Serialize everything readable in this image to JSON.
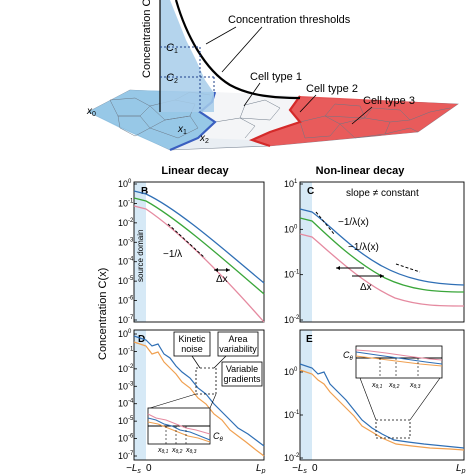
{
  "top": {
    "y_axis_label": "Concentration C(x)",
    "threshold_title": "Concentration thresholds",
    "c1": "C",
    "c1_sub": "1",
    "c2": "C",
    "c2_sub": "2",
    "x0": "x",
    "x0_sub": "0",
    "x1": "x",
    "x1_sub": "1",
    "x2": "x",
    "x2_sub": "2",
    "cell_type_1": "Cell type 1",
    "cell_type_2": "Cell type 2",
    "cell_type_3": "Cell type 3"
  },
  "headers": {
    "linear": "Linear decay",
    "nonlinear": "Non-linear decay"
  },
  "panels": {
    "B": {
      "letter": "B",
      "ticks": [
        "10",
        "10",
        "10",
        "10",
        "10",
        "10",
        "10",
        "10"
      ],
      "exps": [
        "0",
        "-1",
        "-2",
        "-3",
        "-4",
        "-5",
        "-6",
        "-7"
      ],
      "source": "source domain",
      "slope": "−1/λ",
      "dx": "Δx"
    },
    "C": {
      "letter": "C",
      "ticks": [
        "10",
        "10",
        "10",
        "10"
      ],
      "exps": [
        "1",
        "0",
        "-1",
        "-2"
      ],
      "note": "slope ≠ constant",
      "slope1": "−1/λ(x)",
      "slope2": "−1/λ(x)",
      "dx": "Δx"
    },
    "D": {
      "letter": "D",
      "ticks": [
        "10",
        "10",
        "10",
        "10",
        "10",
        "10",
        "10",
        "10"
      ],
      "exps": [
        "0",
        "-1",
        "-2",
        "-3",
        "-4",
        "-5",
        "-6",
        "-7"
      ],
      "box1": "Kinetic noise",
      "box2": "Area variability",
      "box3": "Variable gradients",
      "ctheta": "C",
      "ctheta_sub": "θ",
      "xt1": "x",
      "xt1_sub": "θ,1",
      "xt2": "x",
      "xt2_sub": "θ,2",
      "xt3": "x",
      "xt3_sub": "θ,3"
    },
    "E": {
      "letter": "E",
      "ticks": [
        "10",
        "10",
        "10"
      ],
      "exps": [
        "0",
        "-1",
        "-2"
      ],
      "ctheta": "C",
      "ctheta_sub": "θ",
      "xt1": "x",
      "xt1_sub": "θ,1",
      "xt2": "x",
      "xt2_sub": "θ,2",
      "xt3": "x",
      "xt3_sub": "θ,3"
    }
  },
  "y_label_lower": "Concentration C(x)",
  "x_axis": {
    "left": "−L",
    "left_sub": "s",
    "zero": "0",
    "right": "L",
    "right_sub": "p"
  },
  "colors": {
    "blue_curve": "#2f6fb5",
    "green_curve": "#3aa63a",
    "pink_curve": "#e58aa0",
    "orange_curve": "#f0a050",
    "source_shade": "#d6e9f6",
    "field_blue": "#8ec3e6",
    "field_red": "#e84a4a"
  }
}
